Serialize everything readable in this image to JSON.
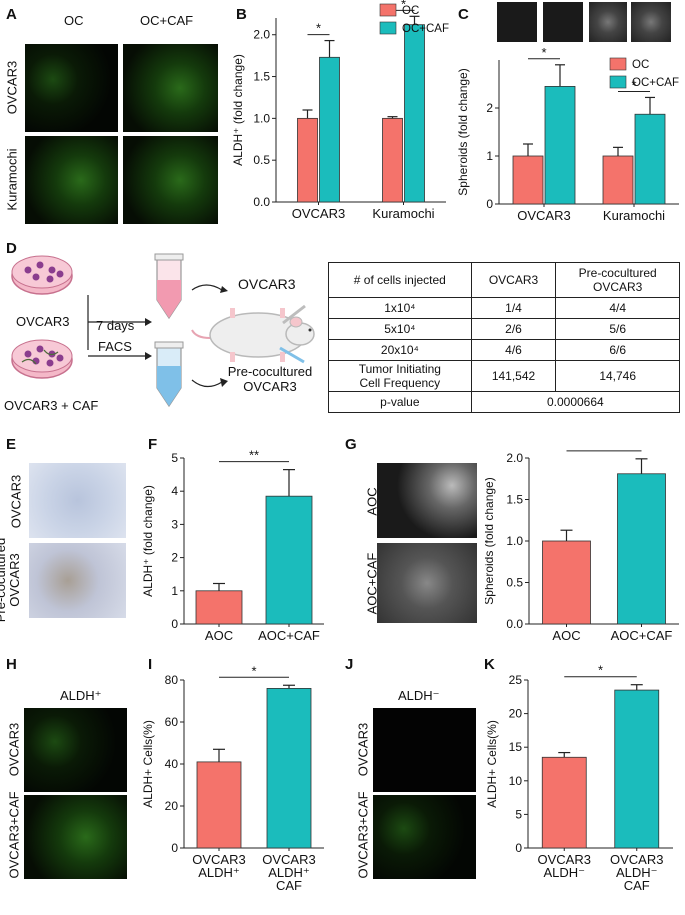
{
  "panels": {
    "A": {
      "label": "A",
      "col1": "OC",
      "col2": "OC+CAF",
      "row1": "OVCAR3",
      "row2": "Kuramochi"
    },
    "B": {
      "label": "B"
    },
    "C": {
      "label": "C"
    },
    "D": {
      "label": "D",
      "ovcar3": "OVCAR3",
      "ovcar3_caf": "OVCAR3 + CAF",
      "days": "7 days",
      "facs": "FACS",
      "out1": "OVCAR3",
      "out2_line1": "Pre-cocultured",
      "out2_line2": "OVCAR3",
      "table": {
        "header": [
          "# of cells injected",
          "OVCAR3",
          "Pre-cocultured\nOVCAR3"
        ],
        "rows": [
          [
            "1x10⁴",
            "1/4",
            "4/4"
          ],
          [
            "5x10⁴",
            "2/6",
            "5/6"
          ],
          [
            "20x10⁴",
            "4/6",
            "6/6"
          ],
          [
            "Tumor Initiating\nCell Frequency",
            "141,542",
            "14,746"
          ]
        ],
        "pvalue_label": "p-value",
        "pvalue": "0.0000664"
      }
    },
    "E": {
      "label": "E",
      "row1": "OVCAR3",
      "row2_line1": "Pre-cocultured",
      "row2_line2": "OVCAR3"
    },
    "F": {
      "label": "F"
    },
    "G": {
      "label": "G",
      "row1": "AOC",
      "row2": "AOC+CAF"
    },
    "H": {
      "label": "H",
      "title": "ALDH⁺",
      "row1": "OVCAR3",
      "row2": "OVCAR3+CAF"
    },
    "I": {
      "label": "I"
    },
    "J": {
      "label": "J",
      "title": "ALDH⁻",
      "row1": "OVCAR3",
      "row2": "OVCAR3+CAF"
    },
    "K": {
      "label": "K"
    }
  },
  "colors": {
    "salmon": "#f4736b",
    "teal": "#1bbcbc"
  },
  "chart_data": [
    {
      "id": "B",
      "type": "bar",
      "categories": [
        "OVCAR3",
        "Kuramochi"
      ],
      "series": [
        {
          "name": "OC",
          "values": [
            1.0,
            1.0
          ],
          "err": [
            0.1,
            0.02
          ]
        },
        {
          "name": "OC+CAF",
          "values": [
            1.73,
            2.12
          ],
          "err": [
            0.2,
            0.1
          ]
        }
      ],
      "ylabel": "ALDH⁺ (fold change)",
      "ylim": [
        0,
        2.2
      ],
      "yticks": [
        0.0,
        0.5,
        1.0,
        1.5,
        2.0
      ],
      "ytick_labels": [
        "0.0",
        "0.5",
        "1.0",
        "1.5",
        "2.0"
      ],
      "sig": [
        "*",
        "*"
      ],
      "legend": "top"
    },
    {
      "id": "C",
      "type": "bar",
      "categories": [
        "OVCAR3",
        "Kuramochi"
      ],
      "series": [
        {
          "name": "OC",
          "values": [
            1.0,
            1.0
          ],
          "err": [
            0.25,
            0.18
          ]
        },
        {
          "name": "OC+CAF",
          "values": [
            2.45,
            1.87
          ],
          "err": [
            0.45,
            0.35
          ]
        }
      ],
      "ylabel": "Spheroids (fold change)",
      "ylim": [
        0,
        3.0
      ],
      "yticks": [
        0,
        1,
        2
      ],
      "ytick_labels": [
        "0",
        "1",
        "2"
      ],
      "sig": [
        "*",
        "*"
      ],
      "legend": "top-right"
    },
    {
      "id": "F",
      "type": "bar",
      "categories": [
        "AOC",
        "AOC+CAF"
      ],
      "series": [
        {
          "values": [
            1.0,
            3.85
          ],
          "err": [
            0.22,
            0.8
          ]
        }
      ],
      "ylabel": "ALDH⁺ (fold change)",
      "ylim": [
        0,
        5
      ],
      "yticks": [
        0,
        1,
        2,
        3,
        4,
        5
      ],
      "ytick_labels": [
        "0",
        "1",
        "2",
        "3",
        "4",
        "5"
      ],
      "sig": [
        "**"
      ]
    },
    {
      "id": "G",
      "type": "bar",
      "categories": [
        "AOC",
        "AOC+CAF"
      ],
      "series": [
        {
          "values": [
            1.0,
            1.81
          ],
          "err": [
            0.13,
            0.18
          ]
        }
      ],
      "ylabel": "Spheroids (fold change)",
      "ylim": [
        0,
        2.0
      ],
      "yticks": [
        0.0,
        0.5,
        1.0,
        1.5,
        2.0
      ],
      "ytick_labels": [
        "0.0",
        "0.5",
        "1.0",
        "1.5",
        "2.0"
      ],
      "sig": [
        "*"
      ]
    },
    {
      "id": "I",
      "type": "bar",
      "categories": [
        "OVCAR3\nALDH⁺",
        "OVCAR3\nALDH⁺\nCAF"
      ],
      "series": [
        {
          "values": [
            41,
            76
          ],
          "err": [
            6,
            1.5
          ]
        }
      ],
      "ylabel": "ALDH+ Cells(%)",
      "ylim": [
        0,
        80
      ],
      "yticks": [
        0,
        20,
        40,
        60,
        80
      ],
      "ytick_labels": [
        "0",
        "20",
        "40",
        "60",
        "80"
      ],
      "sig": [
        "*"
      ]
    },
    {
      "id": "K",
      "type": "bar",
      "categories": [
        "OVCAR3\nALDH⁻",
        "OVCAR3\nALDH⁻\nCAF"
      ],
      "series": [
        {
          "values": [
            13.5,
            23.5
          ],
          "err": [
            0.7,
            0.8
          ]
        }
      ],
      "ylabel": "ALDH+ Cells(%)",
      "ylim": [
        0,
        25
      ],
      "yticks": [
        0,
        5,
        10,
        15,
        20,
        25
      ],
      "ytick_labels": [
        "0",
        "5",
        "10",
        "15",
        "20",
        "25"
      ],
      "sig": [
        "*"
      ]
    }
  ]
}
